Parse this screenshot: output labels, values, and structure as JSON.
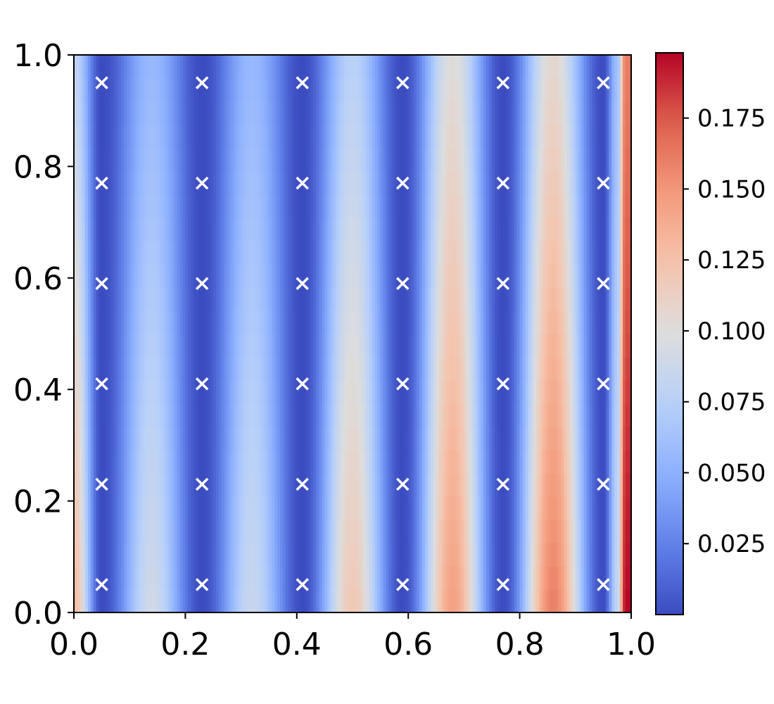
{
  "chart_data": {
    "type": "heatmap",
    "title": "",
    "xlabel": "",
    "ylabel": "",
    "xlim": [
      0.0,
      1.0
    ],
    "ylim": [
      0.0,
      1.0
    ],
    "x_ticks": [
      "0.0",
      "0.2",
      "0.4",
      "0.6",
      "0.8",
      "1.0"
    ],
    "y_ticks": [
      "0.0",
      "0.2",
      "0.4",
      "0.6",
      "0.8",
      "1.0"
    ],
    "grid": false,
    "colormap": "coolwarm",
    "colorbar": {
      "range": [
        0.0,
        0.198
      ],
      "ticks": [
        "0.025",
        "0.050",
        "0.075",
        "0.100",
        "0.125",
        "0.150",
        "0.175"
      ],
      "tick_values": [
        0.025,
        0.05,
        0.075,
        0.1,
        0.125,
        0.15,
        0.175
      ]
    },
    "markers": {
      "symbol": "x",
      "color": "#ffffff",
      "x": [
        0.05,
        0.23,
        0.41,
        0.59,
        0.77,
        0.95
      ],
      "y": [
        0.05,
        0.23,
        0.41,
        0.59,
        0.77,
        0.95
      ]
    },
    "heat_profile": {
      "x": [
        0.0,
        0.05,
        0.14,
        0.23,
        0.32,
        0.41,
        0.5,
        0.59,
        0.68,
        0.77,
        0.86,
        0.95,
        0.975,
        0.99,
        1.0
      ],
      "value_at_bottom": [
        0.13,
        0.0,
        0.09,
        0.0,
        0.085,
        0.0,
        0.12,
        0.0,
        0.145,
        0.0,
        0.16,
        0.0,
        0.08,
        0.198,
        0.198
      ],
      "value_at_top": [
        0.08,
        0.0,
        0.055,
        0.0,
        0.055,
        0.0,
        0.075,
        0.0,
        0.1,
        0.0,
        0.105,
        0.0,
        0.06,
        0.16,
        0.16
      ]
    }
  }
}
